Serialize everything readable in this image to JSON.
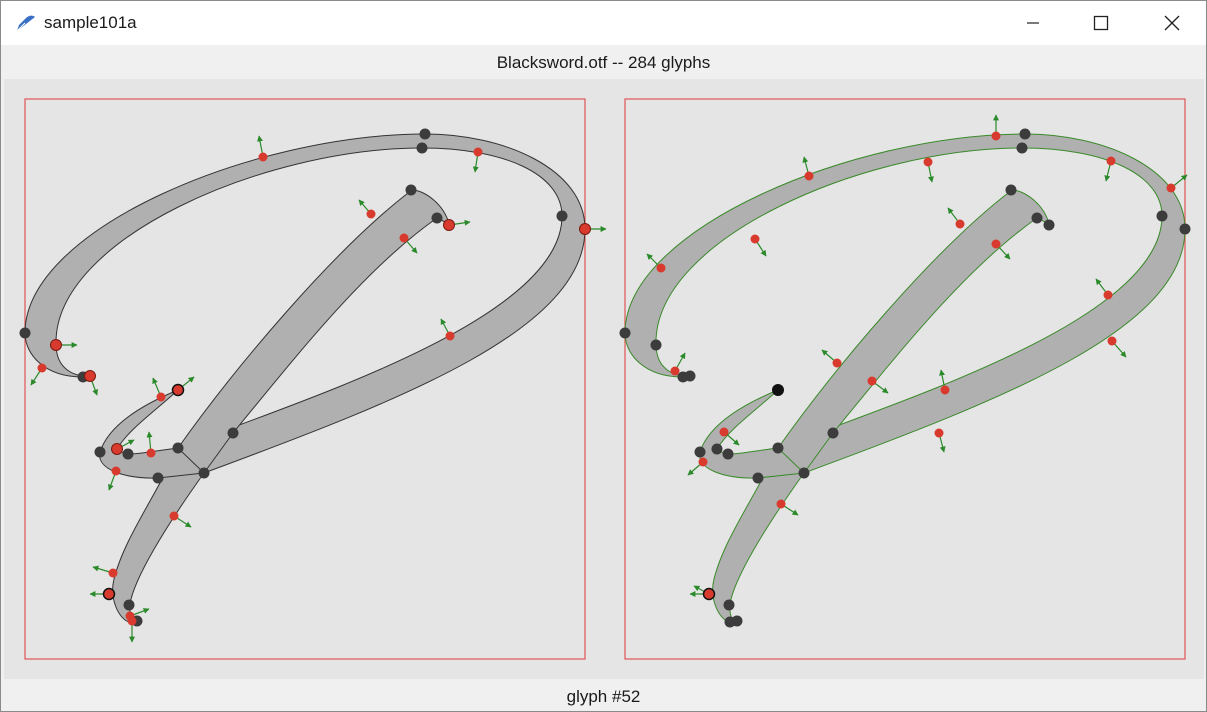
{
  "window": {
    "title": "sample101a",
    "app_icon": "feather-pen-icon",
    "controls": [
      "minimize-icon",
      "maximize-icon",
      "close-icon"
    ]
  },
  "header": {
    "label": "Blacksword.otf -- 284 glyphs"
  },
  "footer": {
    "label": "glyph #52"
  },
  "colors": {
    "glyph_fill": "#b0b0b0",
    "bbox_stroke": "#e06060",
    "on_curve_point": "#3c3c3c",
    "off_curve_point": "#d93a2e",
    "normal_arrow": "#2a8a2a",
    "outline_left": "#333333",
    "outline_right": "#3a8a2a"
  }
}
